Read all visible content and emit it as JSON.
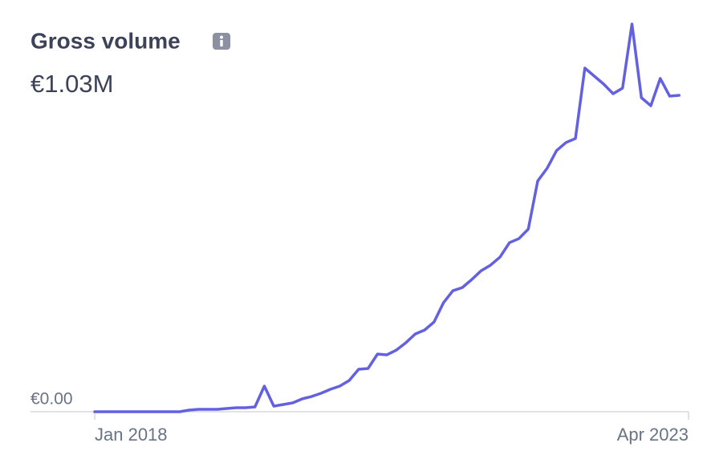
{
  "chart_data": {
    "type": "line",
    "title": "Gross volume",
    "subtitle": "€1.03M",
    "categories": [
      "Jan 2018",
      null,
      null,
      null,
      null,
      null,
      null,
      null,
      null,
      null,
      null,
      null,
      null,
      null,
      null,
      null,
      null,
      null,
      null,
      null,
      null,
      null,
      null,
      null,
      null,
      null,
      null,
      null,
      null,
      null,
      null,
      null,
      null,
      null,
      null,
      null,
      null,
      null,
      null,
      null,
      null,
      null,
      null,
      null,
      null,
      null,
      null,
      null,
      null,
      null,
      null,
      null,
      null,
      null,
      null,
      null,
      null,
      null,
      null,
      null,
      null,
      null,
      null,
      "Apr 2023"
    ],
    "series": [
      {
        "name": "Gross volume",
        "color": "#6461e0",
        "values": [
          0,
          0,
          0,
          0,
          0,
          0,
          0,
          0,
          0,
          0,
          230,
          350,
          350,
          350,
          460,
          580,
          580,
          700,
          3710,
          810,
          1040,
          1280,
          1860,
          2200,
          2670,
          3250,
          3710,
          4520,
          6150,
          6260,
          8350,
          8240,
          8930,
          9980,
          11250,
          11830,
          12990,
          15780,
          17520,
          17980,
          19140,
          20420,
          21230,
          22390,
          24480,
          25060,
          26450,
          33410,
          35260,
          37820,
          38980,
          39560,
          49760,
          48600,
          47440,
          46050,
          46860,
          56140,
          45470,
          44310,
          48260,
          45700,
          45820,
          null
        ]
      }
    ],
    "ylim": [
      0,
      56140
    ],
    "yticks": [
      {
        "value": 0,
        "label": "€0.00"
      }
    ],
    "grid": false
  }
}
